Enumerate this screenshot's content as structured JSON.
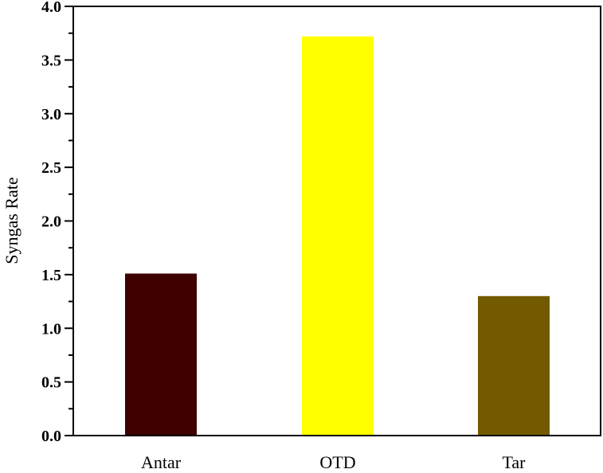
{
  "chart_data": {
    "type": "bar",
    "title": "",
    "xlabel": "",
    "ylabel": "Syngas Rate",
    "categories": [
      "Antar",
      "OTD",
      "Tar"
    ],
    "values": [
      1.51,
      3.72,
      1.3
    ],
    "colors": [
      "#3f0000",
      "#ffff00",
      "#735a00"
    ],
    "ylim": [
      0,
      4.0
    ],
    "yticks": [
      "0.0",
      "0.5",
      "1.0",
      "1.5",
      "2.0",
      "2.5",
      "3.0",
      "3.5",
      "4.0"
    ],
    "ytick_values": [
      0,
      0.5,
      1.0,
      1.5,
      2.0,
      2.5,
      3.0,
      3.5,
      4.0
    ],
    "minor_ytick_step": 0.25,
    "grid": false,
    "legend": null
  }
}
